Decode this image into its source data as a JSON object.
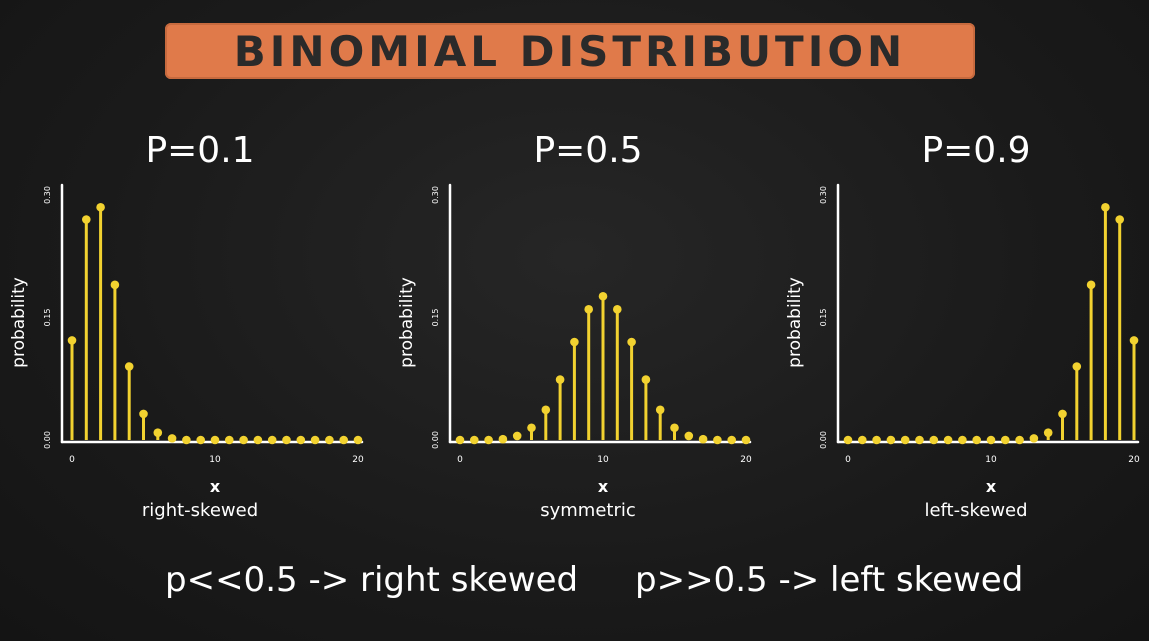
{
  "title": "BINOMIAL DISTRIBUTION",
  "footer": {
    "left": "p<<0.5 -> right skewed",
    "right": "p>>0.5 -> left skewed"
  },
  "colors": {
    "stem": "#f2d230",
    "axis": "#ffffff",
    "banner": "#e07a4a"
  },
  "chart_data": [
    {
      "type": "bar",
      "title": "P=0.1",
      "xlabel": "x",
      "ylabel": "probability",
      "subtitle": "right-skewed",
      "xlim": [
        0,
        20
      ],
      "ylim": [
        0,
        0.3
      ],
      "xticks": [
        "0",
        "10",
        "20"
      ],
      "yticks": [
        "0.00",
        "0.15",
        "0.30"
      ],
      "x": [
        0,
        1,
        2,
        3,
        4,
        5,
        6,
        7,
        8,
        9,
        10,
        11,
        12,
        13,
        14,
        15,
        16,
        17,
        18,
        19,
        20
      ],
      "values": [
        0.122,
        0.27,
        0.285,
        0.19,
        0.09,
        0.032,
        0.009,
        0.002,
        0.0,
        0.0,
        0.0,
        0.0,
        0.0,
        0.0,
        0.0,
        0.0,
        0.0,
        0.0,
        0.0,
        0.0,
        0.0
      ]
    },
    {
      "type": "bar",
      "title": "P=0.5",
      "xlabel": "x",
      "ylabel": "probability",
      "subtitle": "symmetric",
      "xlim": [
        0,
        20
      ],
      "ylim": [
        0,
        0.3
      ],
      "xticks": [
        "0",
        "10",
        "20"
      ],
      "yticks": [
        "0.00",
        "0.15",
        "0.30"
      ],
      "x": [
        0,
        1,
        2,
        3,
        4,
        5,
        6,
        7,
        8,
        9,
        10,
        11,
        12,
        13,
        14,
        15,
        16,
        17,
        18,
        19,
        20
      ],
      "values": [
        0.0,
        0.0,
        0.0,
        0.001,
        0.005,
        0.015,
        0.037,
        0.074,
        0.12,
        0.16,
        0.176,
        0.16,
        0.12,
        0.074,
        0.037,
        0.015,
        0.005,
        0.001,
        0.0,
        0.0,
        0.0
      ]
    },
    {
      "type": "bar",
      "title": "P=0.9",
      "xlabel": "x",
      "ylabel": "probability",
      "subtitle": "left-skewed",
      "xlim": [
        0,
        20
      ],
      "ylim": [
        0,
        0.3
      ],
      "xticks": [
        "0",
        "10",
        "20"
      ],
      "yticks": [
        "0.00",
        "0.15",
        "0.30"
      ],
      "x": [
        0,
        1,
        2,
        3,
        4,
        5,
        6,
        7,
        8,
        9,
        10,
        11,
        12,
        13,
        14,
        15,
        16,
        17,
        18,
        19,
        20
      ],
      "values": [
        0.0,
        0.0,
        0.0,
        0.0,
        0.0,
        0.0,
        0.0,
        0.0,
        0.0,
        0.0,
        0.0,
        0.0,
        0.0,
        0.002,
        0.009,
        0.032,
        0.09,
        0.19,
        0.285,
        0.27,
        0.122
      ]
    }
  ]
}
